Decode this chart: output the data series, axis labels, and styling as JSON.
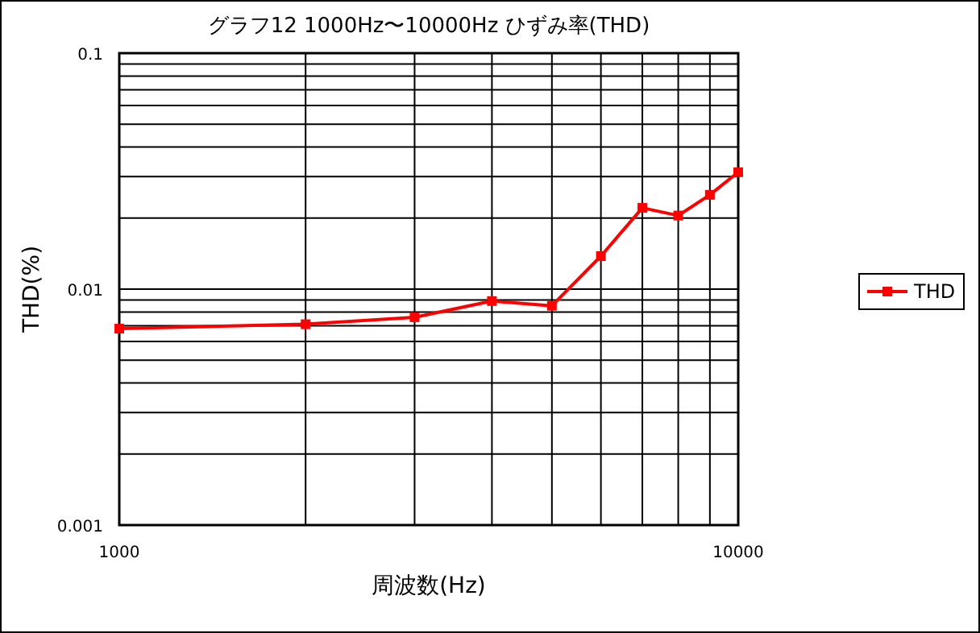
{
  "chart_data": {
    "type": "line",
    "title": "グラフ12  1000Hz〜10000Hz  ひずみ率(THD)",
    "xlabel": "周波数(Hz)",
    "ylabel": "THD(%)",
    "x": [
      1000,
      2000,
      3000,
      4000,
      5000,
      6000,
      7000,
      8000,
      9000,
      10000
    ],
    "series": [
      {
        "name": "THD",
        "color": "#ff0000",
        "values": [
          0.0068,
          0.0071,
          0.0076,
          0.0089,
          0.0085,
          0.0138,
          0.0221,
          0.0205,
          0.0251,
          0.0313
        ]
      }
    ],
    "log": "xy",
    "xlim": [
      1000,
      10000
    ],
    "ylim": [
      0.001,
      0.1
    ],
    "xticks": [
      1000,
      {
        "value": 2000,
        "label": null
      },
      {
        "value": 3000,
        "label": null
      },
      {
        "value": 4000,
        "label": null
      },
      {
        "value": 5000,
        "label": null
      },
      {
        "value": 6000,
        "label": null
      },
      {
        "value": 7000,
        "label": null
      },
      {
        "value": 8000,
        "label": null
      },
      {
        "value": 9000,
        "label": null
      },
      10000
    ],
    "yticks": [
      0.001,
      {
        "value": 0.002,
        "label": null
      },
      {
        "value": 0.003,
        "label": null
      },
      {
        "value": 0.004,
        "label": null
      },
      {
        "value": 0.005,
        "label": null
      },
      {
        "value": 0.006,
        "label": null
      },
      {
        "value": 0.007,
        "label": null
      },
      {
        "value": 0.008,
        "label": null
      },
      {
        "value": 0.009,
        "label": null
      },
      0.01,
      {
        "value": 0.02,
        "label": null
      },
      {
        "value": 0.03,
        "label": null
      },
      {
        "value": 0.04,
        "label": null
      },
      {
        "value": 0.05,
        "label": null
      },
      {
        "value": 0.06,
        "label": null
      },
      {
        "value": 0.07,
        "label": null
      },
      {
        "value": 0.08,
        "label": null
      },
      {
        "value": 0.09,
        "label": null
      },
      0.1
    ],
    "grid": true,
    "legend": "right",
    "marker": "square",
    "line_style": "solid"
  }
}
